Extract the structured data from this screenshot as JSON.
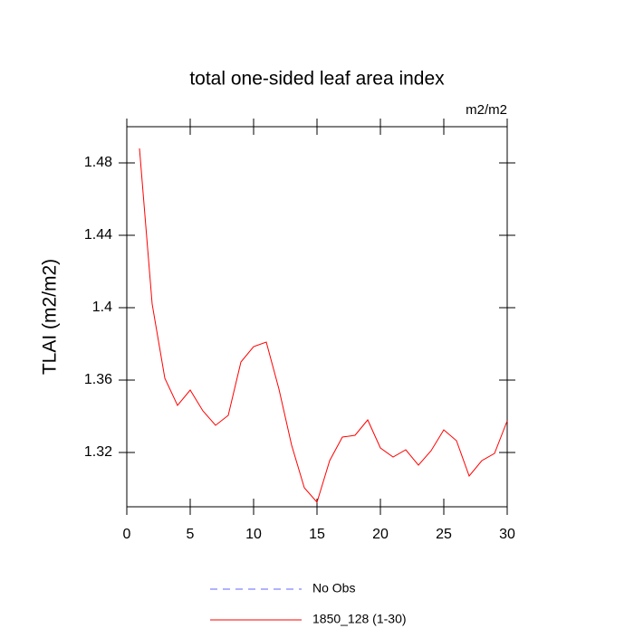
{
  "chart_data": {
    "type": "line",
    "title": "total one-sided leaf area index",
    "units": "m2/m2",
    "y_label": "TLAI  (m2/m2)",
    "x": [
      1,
      2,
      3,
      4,
      5,
      6,
      7,
      8,
      9,
      10,
      11,
      12,
      13,
      14,
      15,
      16,
      17,
      18,
      19,
      20,
      21,
      22,
      23,
      24,
      25,
      26,
      27,
      28,
      29,
      30
    ],
    "series": [
      {
        "name": "No Obs",
        "color": "#6666ff",
        "dashed": true,
        "values": [
          null,
          null,
          null,
          null,
          null,
          null,
          null,
          null,
          null,
          null,
          null,
          null,
          null,
          null,
          null,
          null,
          null,
          null,
          null,
          null,
          null,
          null,
          null,
          null,
          null,
          null,
          null,
          null,
          null,
          null
        ]
      },
      {
        "name": "1850_128 (1-30)",
        "color": "#ff0000",
        "dashed": false,
        "values": [
          1.488,
          1.402,
          1.361,
          1.346,
          1.3545,
          1.343,
          1.335,
          1.3405,
          1.37,
          1.3785,
          1.381,
          1.355,
          1.324,
          1.3005,
          1.2925,
          1.3155,
          1.3285,
          1.3295,
          1.338,
          1.3225,
          1.3175,
          1.3215,
          1.313,
          1.321,
          1.3325,
          1.3265,
          1.307,
          1.3155,
          1.3195,
          1.3375
        ]
      }
    ],
    "xlim": [
      0,
      30
    ],
    "xticks": [
      0,
      5,
      10,
      15,
      20,
      25,
      30
    ],
    "ylim": [
      1.29,
      1.5
    ],
    "yticks": [
      1.32,
      1.36,
      1.4,
      1.44,
      1.48
    ],
    "grid": false
  }
}
